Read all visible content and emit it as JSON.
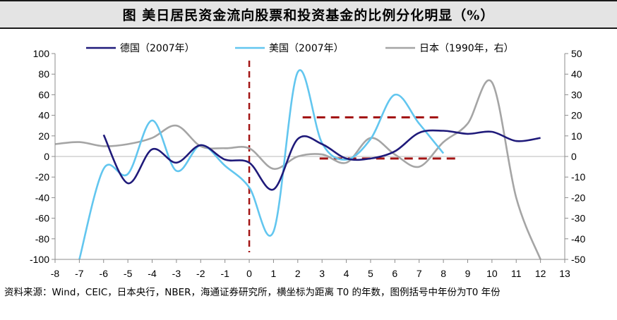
{
  "title": "图  美日居民资金流向股票和投资基金的比例分化明显（%）",
  "source_text": "资料来源：Wind，CEIC，日本央行，NBER，海通证券研究所，横坐标为距离 T0 的年数，图例括号中年份为T0 年份",
  "chart_data": {
    "type": "line",
    "x_ticks": [
      -8,
      -7,
      -6,
      -5,
      -4,
      -3,
      -2,
      -1,
      0,
      1,
      2,
      3,
      4,
      5,
      6,
      7,
      8,
      9,
      10,
      11,
      12,
      13
    ],
    "y_left_ticks": [
      100,
      80,
      60,
      40,
      20,
      0,
      -20,
      -40,
      -60,
      -80,
      -100
    ],
    "y_right_ticks": [
      50,
      40,
      30,
      20,
      10,
      0,
      -10,
      -20,
      -30,
      -40,
      -50
    ],
    "xlim": [
      -8,
      13
    ],
    "ylim_left": [
      -100,
      100
    ],
    "ylim_right": [
      -50,
      50
    ],
    "legend_position": "top",
    "series": [
      {
        "name": "德国（2007年）",
        "axis": "left",
        "color": "#1f1a7a",
        "x": [
          -6,
          -5,
          -4,
          -3,
          -2,
          -1,
          0,
          1,
          2,
          3,
          4,
          5,
          6,
          7,
          8,
          9,
          10,
          11,
          12
        ],
        "y": [
          21,
          -26,
          7,
          -6,
          11,
          -3,
          -6,
          -32,
          17,
          12,
          -2,
          -2,
          5,
          23,
          25,
          22,
          24,
          15,
          18
        ]
      },
      {
        "name": "美国（2007年）",
        "axis": "left",
        "color": "#62c6ef",
        "x": [
          -7,
          -6,
          -5,
          -4,
          -3,
          -2,
          -1,
          0,
          1,
          2,
          3,
          4,
          5,
          6,
          7,
          8
        ],
        "y": [
          -100,
          -12,
          -17,
          35,
          -14,
          11,
          -9,
          -30,
          -73,
          82,
          13,
          -3,
          17,
          60,
          32,
          3
        ]
      },
      {
        "name": "日本（1990年，右）",
        "axis": "right",
        "color": "#a5a5a5",
        "x": [
          -8,
          -7,
          -6,
          -5,
          -4,
          -3,
          -2,
          -1,
          0,
          1,
          2,
          3,
          4,
          5,
          6,
          7,
          8,
          9,
          10,
          11,
          12
        ],
        "y": [
          6,
          7,
          5,
          6,
          9,
          15,
          5,
          4,
          4,
          -6,
          0,
          1,
          -3,
          9,
          1,
          -5,
          7,
          16,
          36,
          -20,
          -50
        ]
      }
    ],
    "annotations": [
      {
        "type": "vertical-dashed-line",
        "x": 0,
        "color": "#a31515"
      },
      {
        "type": "horizontal-dashed-line",
        "x_range": [
          2.2,
          7.8
        ],
        "y": 38,
        "color": "#a31515"
      },
      {
        "type": "horizontal-dashed-line",
        "x_range": [
          2.9,
          8.5
        ],
        "y": -2,
        "color": "#a31515"
      }
    ]
  }
}
